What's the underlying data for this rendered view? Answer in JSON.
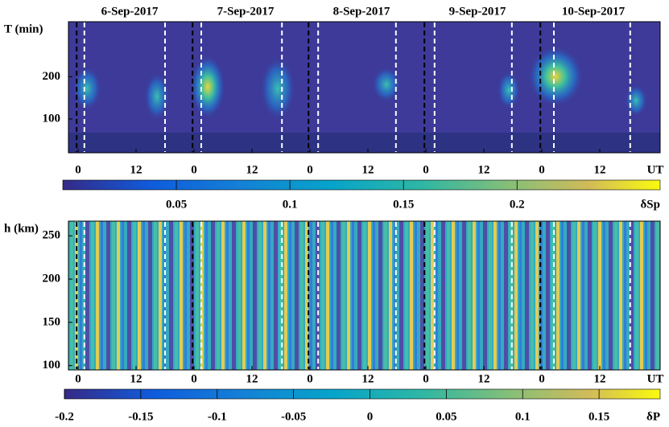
{
  "chart_data": [
    {
      "type": "heatmap",
      "categories": [
        "6-Sep-2017",
        "7-Sep-2017",
        "8-Sep-2017",
        "9-Sep-2017",
        "10-Sep-2017"
      ],
      "ylabel": "T (min)",
      "ylim": [
        20,
        330
      ],
      "yticks": [
        100,
        200
      ],
      "xlabel": "UT",
      "xlim": [
        -2,
        120.5
      ],
      "xticks": [
        {
          "value": 0,
          "label": "0"
        },
        {
          "value": 12,
          "label": "12"
        },
        {
          "value": 24,
          "label": "0"
        },
        {
          "value": 36,
          "label": "12"
        },
        {
          "value": 48,
          "label": "0"
        },
        {
          "value": 60,
          "label": "12"
        },
        {
          "value": 72,
          "label": "0"
        },
        {
          "value": 84,
          "label": "12"
        },
        {
          "value": 96,
          "label": "0"
        },
        {
          "value": 108,
          "label": "12"
        }
      ],
      "vlines": [
        {
          "color": "#000000",
          "x": [
            -0.3,
            23.7,
            47.7,
            71.7,
            95.7
          ]
        },
        {
          "color": "#ffffff",
          "x": [
            1.3,
            18,
            25.5,
            42.2,
            49.7,
            65.8,
            73.8,
            89.8,
            98.5,
            114.3
          ]
        }
      ],
      "colorbar": {
        "label": "δSp",
        "lim": [
          0,
          0.263
        ],
        "ticks": [
          0.05,
          0.1,
          0.15,
          0.2
        ]
      }
    },
    {
      "type": "heatmap",
      "ylabel": "h (km)",
      "ylim": [
        95,
        267
      ],
      "yticks": [
        100,
        150,
        200,
        250
      ],
      "xlabel": "UT",
      "xlim": [
        -2,
        120.5
      ],
      "xticks": [
        {
          "value": 0,
          "label": "0"
        },
        {
          "value": 12,
          "label": "12"
        },
        {
          "value": 24,
          "label": "0"
        },
        {
          "value": 36,
          "label": "12"
        },
        {
          "value": 48,
          "label": "0"
        },
        {
          "value": 60,
          "label": "12"
        },
        {
          "value": 72,
          "label": "0"
        },
        {
          "value": 84,
          "label": "12"
        },
        {
          "value": 96,
          "label": "0"
        },
        {
          "value": 108,
          "label": "12"
        }
      ],
      "vlines": [
        {
          "color": "#000000",
          "x": [
            -0.3,
            23.7,
            47.7,
            71.7,
            95.7
          ]
        },
        {
          "color": "#ffffff",
          "x": [
            1.3,
            18,
            25.5,
            42.2,
            49.7,
            65.8,
            73.8,
            89.8,
            98.5,
            114.3
          ]
        }
      ],
      "colorbar": {
        "label": "δP",
        "lim": [
          -0.2,
          0.19
        ],
        "ticks": [
          -0.2,
          -0.15,
          -0.1,
          -0.05,
          0,
          0.05,
          0.1,
          0.15
        ]
      }
    }
  ]
}
